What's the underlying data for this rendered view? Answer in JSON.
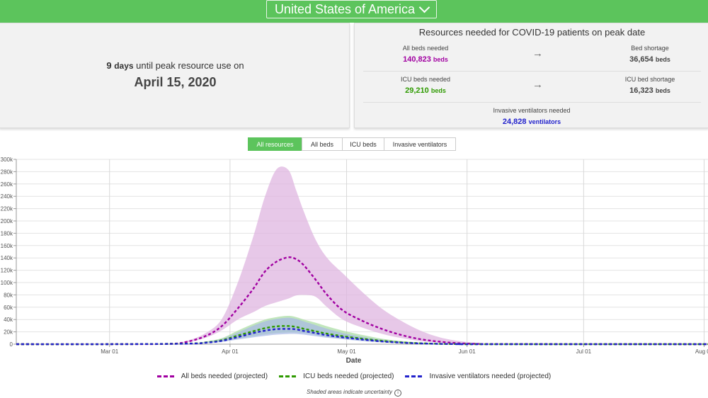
{
  "header": {
    "country": "United States of America"
  },
  "peak": {
    "days_count": "9",
    "days_unit": "days",
    "days_suffix": " until peak resource use on",
    "date": "April 15, 2020"
  },
  "resources": {
    "title": "Resources needed for COVID-19 patients on peak date",
    "all_beds": {
      "label": "All beds needed",
      "value": "140,823",
      "unit": "beds",
      "color": "#a100a1"
    },
    "bed_shortage": {
      "label": "Bed shortage",
      "value": "36,654",
      "unit": "beds"
    },
    "icu_beds": {
      "label": "ICU beds needed",
      "value": "29,210",
      "unit": "beds",
      "color": "#2e9a00"
    },
    "icu_shortage": {
      "label": "ICU bed shortage",
      "value": "16,323",
      "unit": "beds"
    },
    "ventilators": {
      "label": "Invasive ventilators needed",
      "value": "24,828",
      "unit": "ventilators",
      "color": "#2222cc"
    }
  },
  "tabs": [
    "All resources",
    "All beds",
    "ICU beds",
    "Invasive ventilators"
  ],
  "legend": {
    "all_beds": "All beds needed (projected)",
    "icu_beds": "ICU beds needed (projected)",
    "ventilators": "Invasive ventilators needed (projected)"
  },
  "footnote": "Shaded areas indicate uncertainty",
  "chart_data": {
    "type": "area",
    "xlabel": "Date",
    "ylabel": "",
    "ylim": [
      0,
      300000
    ],
    "y_ticks": [
      "0",
      "20k",
      "40k",
      "60k",
      "80k",
      "100k",
      "120k",
      "140k",
      "160k",
      "180k",
      "200k",
      "220k",
      "240k",
      "260k",
      "280k",
      "300k"
    ],
    "x_ticks": [
      {
        "label": "Mar 01",
        "day": 0
      },
      {
        "label": "Apr 01",
        "day": 31
      },
      {
        "label": "May 01",
        "day": 61
      },
      {
        "label": "Jun 01",
        "day": 92
      },
      {
        "label": "Jul 01",
        "day": 122
      },
      {
        "label": "Aug 01",
        "day": 153
      }
    ],
    "x_range": [
      -24,
      154
    ],
    "grid": true,
    "series": [
      {
        "name": "All beds needed (projected)",
        "color": "#a100a1",
        "band_color": "#dfb6e0",
        "x": [
          -24,
          0,
          15,
          20,
          25,
          29,
          33,
          37,
          40,
          43,
          46,
          48,
          50,
          53,
          56,
          60,
          65,
          70,
          75,
          80,
          85,
          90,
          95,
          100,
          154
        ],
        "mean": [
          0,
          0,
          500,
          4000,
          14000,
          30000,
          58000,
          90000,
          118000,
          134000,
          141000,
          138000,
          128000,
          105000,
          80000,
          55000,
          38000,
          25000,
          15000,
          8000,
          4000,
          1500,
          500,
          200,
          0
        ],
        "lower": [
          0,
          0,
          300,
          3000,
          11000,
          23000,
          40000,
          52000,
          62000,
          68000,
          74000,
          79000,
          80000,
          77000,
          60000,
          40000,
          27000,
          17000,
          10000,
          5000,
          2500,
          1000,
          300,
          100,
          0
        ],
        "upper": [
          0,
          0,
          800,
          5500,
          19000,
          42000,
          100000,
          175000,
          240000,
          284000,
          283000,
          250000,
          215000,
          170000,
          140000,
          115000,
          85000,
          58000,
          38000,
          22000,
          11000,
          5000,
          2000,
          500,
          0
        ]
      },
      {
        "name": "ICU beds needed (projected)",
        "color": "#2e9a00",
        "band_color": "#a7dca0",
        "x": [
          -24,
          0,
          20,
          25,
          29,
          33,
          37,
          40,
          43,
          46,
          48,
          50,
          53,
          56,
          60,
          65,
          70,
          75,
          80,
          85,
          90,
          95,
          154
        ],
        "mean": [
          0,
          0,
          1000,
          3000,
          6500,
          14000,
          21000,
          26000,
          29000,
          29500,
          28000,
          25000,
          21000,
          17000,
          13000,
          9000,
          5500,
          3000,
          1500,
          600,
          200,
          0,
          0
        ],
        "lower": [
          0,
          0,
          700,
          2000,
          4500,
          9000,
          13000,
          16000,
          18000,
          19000,
          19000,
          18000,
          15000,
          12000,
          9000,
          6000,
          3500,
          1800,
          800,
          300,
          100,
          0,
          0
        ],
        "upper": [
          0,
          0,
          1400,
          4500,
          10000,
          22000,
          33000,
          40000,
          44000,
          46000,
          44000,
          40000,
          35000,
          29000,
          22000,
          15000,
          9000,
          5000,
          2500,
          1000,
          300,
          0,
          0
        ]
      },
      {
        "name": "Invasive ventilators needed (projected)",
        "color": "#2222cc",
        "band_color": "#a7b8e6",
        "x": [
          -24,
          0,
          20,
          25,
          29,
          33,
          37,
          40,
          43,
          46,
          48,
          50,
          53,
          56,
          60,
          65,
          70,
          75,
          80,
          85,
          90,
          95,
          154
        ],
        "mean": [
          0,
          0,
          800,
          2500,
          5500,
          11500,
          18000,
          22000,
          24500,
          24800,
          24000,
          21500,
          18000,
          14500,
          11000,
          7500,
          4500,
          2500,
          1200,
          500,
          150,
          0,
          0
        ],
        "lower": [
          0,
          0,
          500,
          1600,
          3800,
          7500,
          11000,
          13500,
          15500,
          16500,
          16500,
          15500,
          13000,
          10500,
          8000,
          5000,
          3000,
          1500,
          700,
          250,
          80,
          0,
          0
        ],
        "upper": [
          0,
          0,
          1100,
          3800,
          8500,
          19000,
          30000,
          37000,
          41000,
          43000,
          41000,
          37000,
          31000,
          25000,
          18000,
          12000,
          7000,
          3800,
          1800,
          700,
          200,
          0,
          0
        ]
      }
    ]
  }
}
